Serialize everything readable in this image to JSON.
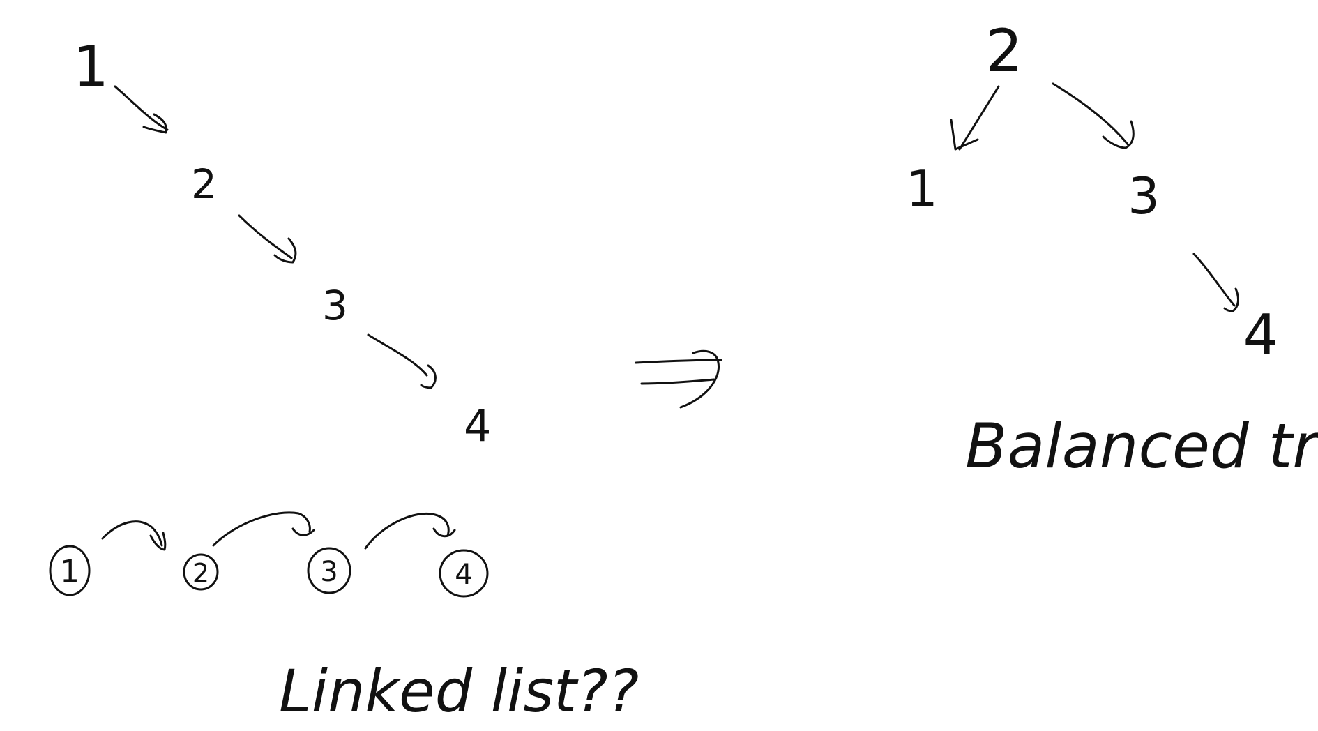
{
  "skewed_chain": {
    "nodes": [
      "1",
      "2",
      "3",
      "4"
    ]
  },
  "linked_list": {
    "nodes": [
      "1",
      "2",
      "3",
      "4"
    ],
    "caption": "Linked list??"
  },
  "balanced_tree": {
    "root": "2",
    "left": "1",
    "right": "3",
    "right_right": "4",
    "caption": "Balanced tree"
  },
  "ink_color": "#111111"
}
